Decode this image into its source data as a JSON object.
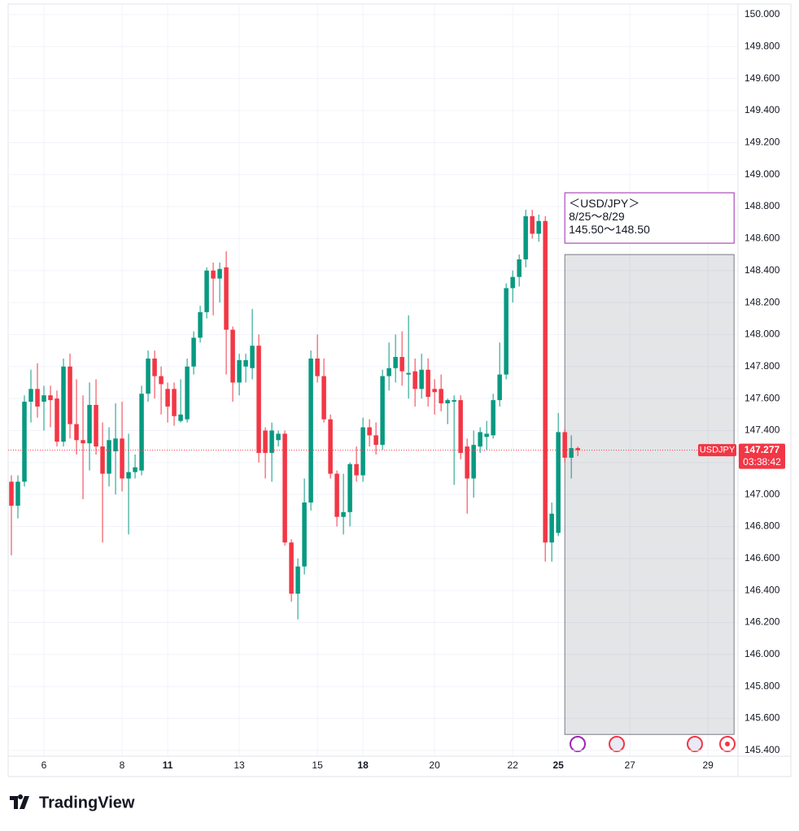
{
  "chart_data": {
    "type": "candlestick",
    "symbol": "USDJPY",
    "up_color": "#089981",
    "down_color": "#f23645",
    "open": [
      147.08,
      146.93,
      147.08,
      147.58,
      147.66,
      147.58,
      147.62,
      147.6,
      147.33,
      147.8,
      147.44,
      147.34,
      147.32,
      147.56,
      147.3,
      147.13,
      147.27,
      147.35,
      147.1,
      147.14,
      147.15,
      147.63,
      147.85,
      147.74,
      147.66,
      147.66,
      147.46,
      147.47,
      147.8,
      147.98,
      148.14,
      148.4,
      148.35,
      148.42,
      148.03,
      147.7,
      147.8,
      147.79,
      147.93,
      147.4,
      147.26,
      147.34,
      147.38,
      146.7,
      146.38,
      146.55,
      146.95,
      147.85,
      147.74,
      147.47,
      147.13,
      146.86,
      146.89,
      147.19,
      147.12,
      147.42,
      147.37,
      147.31,
      147.74,
      147.79,
      147.86,
      147.75,
      147.77,
      147.66,
      147.78,
      147.66,
      147.66,
      147.57,
      147.58,
      147.59,
      147.3,
      147.1,
      147.3,
      147.36,
      147.37,
      147.59,
      147.75,
      148.29,
      148.36,
      148.47,
      148.74,
      148.63,
      148.71,
      146.7,
      146.76,
      147.39,
      147.23,
      147.29
    ],
    "high": [
      147.12,
      147.12,
      147.62,
      147.78,
      147.82,
      147.68,
      147.68,
      147.65,
      147.85,
      147.88,
      147.72,
      147.62,
      147.7,
      147.72,
      147.45,
      147.42,
      147.57,
      147.58,
      147.38,
      147.25,
      147.68,
      147.9,
      147.9,
      147.8,
      147.7,
      147.7,
      147.72,
      147.85,
      148.02,
      148.18,
      148.42,
      148.45,
      148.45,
      148.52,
      148.05,
      147.88,
      147.88,
      148.16,
      148.0,
      147.42,
      147.45,
      147.4,
      147.4,
      146.72,
      146.6,
      147.1,
      147.9,
      148.0,
      147.85,
      147.5,
      147.15,
      147.13,
      147.2,
      147.3,
      147.48,
      147.47,
      147.45,
      147.78,
      147.95,
      148.0,
      148.02,
      148.12,
      147.85,
      147.88,
      147.85,
      147.72,
      147.75,
      147.6,
      147.62,
      147.62,
      147.35,
      147.4,
      147.42,
      147.46,
      147.63,
      147.95,
      148.32,
      148.4,
      148.5,
      148.78,
      148.78,
      148.75,
      148.74,
      146.95,
      147.51,
      147.41,
      147.37,
      147.3
    ],
    "low": [
      146.62,
      146.85,
      147.05,
      147.45,
      147.48,
      147.4,
      147.42,
      147.3,
      147.3,
      147.35,
      147.25,
      146.97,
      147.15,
      147.25,
      146.7,
      147.05,
      147.0,
      147.02,
      146.75,
      147.1,
      147.12,
      147.58,
      147.6,
      147.5,
      147.45,
      147.43,
      147.45,
      147.45,
      147.75,
      147.95,
      148.1,
      148.12,
      148.2,
      147.75,
      147.58,
      147.62,
      147.7,
      147.72,
      147.2,
      147.1,
      147.08,
      147.3,
      146.68,
      146.33,
      146.22,
      146.5,
      146.9,
      147.7,
      147.45,
      147.1,
      146.8,
      146.75,
      146.8,
      147.08,
      147.08,
      147.3,
      147.25,
      147.28,
      147.65,
      147.7,
      147.68,
      147.6,
      147.55,
      147.6,
      147.55,
      147.5,
      147.52,
      147.44,
      147.06,
      147.22,
      146.88,
      146.98,
      147.26,
      147.28,
      147.35,
      147.55,
      147.72,
      148.2,
      148.3,
      148.42,
      148.6,
      148.58,
      146.58,
      146.58,
      146.74,
      147.2,
      147.1,
      147.24
    ],
    "close": [
      146.93,
      147.08,
      147.58,
      147.66,
      147.55,
      147.62,
      147.59,
      147.33,
      147.8,
      147.44,
      147.34,
      147.32,
      147.56,
      147.3,
      147.13,
      147.34,
      147.35,
      147.1,
      147.14,
      147.17,
      147.63,
      147.85,
      147.74,
      147.69,
      147.55,
      147.49,
      147.5,
      147.8,
      147.98,
      148.14,
      148.4,
      148.35,
      148.41,
      148.03,
      147.7,
      147.84,
      147.84,
      147.93,
      147.26,
      147.26,
      147.4,
      147.38,
      146.7,
      146.38,
      146.55,
      146.95,
      147.85,
      147.74,
      147.47,
      147.13,
      146.86,
      146.89,
      147.19,
      147.12,
      147.42,
      147.37,
      147.31,
      147.74,
      147.79,
      147.86,
      147.77,
      147.76,
      147.66,
      147.78,
      147.61,
      147.64,
      147.57,
      147.59,
      147.59,
      147.26,
      147.1,
      147.31,
      147.39,
      147.38,
      147.59,
      147.75,
      148.29,
      148.36,
      148.47,
      148.74,
      148.63,
      148.71,
      146.7,
      146.88,
      147.39,
      147.23,
      147.29,
      147.277
    ],
    "last_price": 147.277,
    "countdown": "03:38:42",
    "xlim": [
      -0.5,
      111.6
    ],
    "xticks": [
      {
        "value": 5,
        "label": "6"
      },
      {
        "value": 17,
        "label": "8"
      },
      {
        "value": 24,
        "label": "11",
        "bold": true
      },
      {
        "value": 35,
        "label": "13"
      },
      {
        "value": 47,
        "label": "15"
      },
      {
        "value": 54,
        "label": "18",
        "bold": true
      },
      {
        "value": 65,
        "label": "20"
      },
      {
        "value": 77,
        "label": "22"
      },
      {
        "value": 84,
        "label": "25",
        "bold": true
      },
      {
        "value": 95,
        "label": "27"
      },
      {
        "value": 107,
        "label": "29"
      }
    ],
    "ylim": [
      145.364,
      150.066
    ],
    "yticks": [
      {
        "value": 150,
        "label": "150.000"
      },
      {
        "value": 149.8,
        "label": "149.800"
      },
      {
        "value": 149.6,
        "label": "149.600"
      },
      {
        "value": 149.4,
        "label": "149.400"
      },
      {
        "value": 149.2,
        "label": "149.200"
      },
      {
        "value": 149,
        "label": "149.000"
      },
      {
        "value": 148.8,
        "label": "148.800"
      },
      {
        "value": 148.6,
        "label": "148.600"
      },
      {
        "value": 148.4,
        "label": "148.400"
      },
      {
        "value": 148.2,
        "label": "148.200"
      },
      {
        "value": 148,
        "label": "148.000"
      },
      {
        "value": 147.8,
        "label": "147.800"
      },
      {
        "value": 147.6,
        "label": "147.600"
      },
      {
        "value": 147.4,
        "label": "147.400"
      },
      {
        "value": 147.2,
        "label": "147.200"
      },
      {
        "value": 147,
        "label": "147.000"
      },
      {
        "value": 146.8,
        "label": "146.800"
      },
      {
        "value": 146.6,
        "label": "146.600"
      },
      {
        "value": 146.4,
        "label": "146.400"
      },
      {
        "value": 146.2,
        "label": "146.200"
      },
      {
        "value": 146,
        "label": "146.000"
      },
      {
        "value": 145.8,
        "label": "145.800"
      },
      {
        "value": 145.6,
        "label": "145.600"
      },
      {
        "value": 145.4,
        "label": "145.400"
      }
    ],
    "grid": true,
    "forecast_box": {
      "x": [
        85,
        111
      ],
      "low": 145.5,
      "high": 148.5,
      "lines": [
        "＜USD/JPY＞",
        "8/25〜8/29",
        "145.50〜148.50"
      ],
      "color": "#9c27b0"
    }
  },
  "brand": "TradingView"
}
